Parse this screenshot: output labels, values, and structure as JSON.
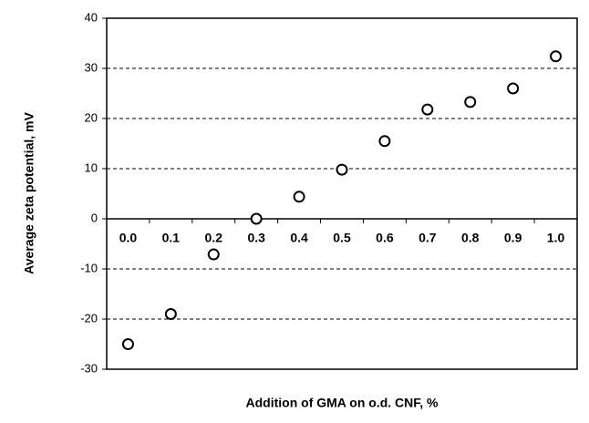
{
  "chart_data": {
    "type": "scatter",
    "xlabel": "Addition of GMA on o.d. CNF, %",
    "ylabel": "Average zeta potential, mV",
    "categories": [
      "0.0",
      "0.1",
      "0.2",
      "0.3",
      "0.4",
      "0.5",
      "0.6",
      "0.7",
      "0.8",
      "0.9",
      "1.0"
    ],
    "values": [
      -25,
      -19,
      -7.1,
      0,
      4.4,
      9.8,
      15.5,
      21.8,
      23.3,
      26,
      32.4
    ],
    "color": "#000000",
    "ylim": [
      -30,
      40
    ],
    "yticks": [
      -30,
      -20,
      -10,
      0,
      10,
      20,
      30,
      40
    ],
    "grid": true
  }
}
